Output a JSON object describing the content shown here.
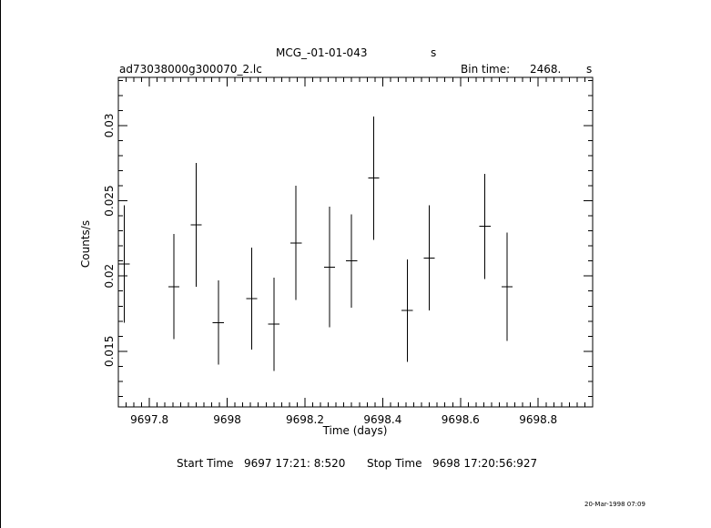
{
  "header": {
    "object_name": "MCG_-01-01-043",
    "object_unit": "s",
    "file_name": "ad73038000g300070_2.lc",
    "bin_label": "Bin time:",
    "bin_value": "2468.",
    "bin_unit": "s"
  },
  "footer": {
    "start_label": "Start Time",
    "start_value": "9697 17:21: 8:520",
    "stop_label": "Stop Time",
    "stop_value": "9698 17:20:56:927",
    "datestamp": "20-Mar-1998 07:09"
  },
  "chart_data": {
    "type": "scatter",
    "xlabel": "Time (days)",
    "ylabel": "Counts/s",
    "xlim": [
      9697.72,
      9698.94
    ],
    "ylim": [
      0.0113,
      0.0332
    ],
    "xticks": [
      {
        "value": 9697.8,
        "label": "9697.8"
      },
      {
        "value": 9698.0,
        "label": "9698"
      },
      {
        "value": 9698.2,
        "label": "9698.2"
      },
      {
        "value": 9698.4,
        "label": "9698.4"
      },
      {
        "value": 9698.6,
        "label": "9698.6"
      },
      {
        "value": 9698.8,
        "label": "9698.8"
      }
    ],
    "yticks": [
      {
        "value": 0.015,
        "label": "0.015"
      },
      {
        "value": 0.02,
        "label": "0.02"
      },
      {
        "value": 0.025,
        "label": "0.025"
      },
      {
        "value": 0.03,
        "label": "0.03"
      }
    ],
    "points": [
      {
        "x": 9697.735,
        "xerr": 0.0143,
        "y": 0.0208,
        "yerr": 0.0039
      },
      {
        "x": 9697.863,
        "xerr": 0.0143,
        "y": 0.0193,
        "yerr": 0.0035
      },
      {
        "x": 9697.92,
        "xerr": 0.0143,
        "y": 0.0234,
        "yerr": 0.0041
      },
      {
        "x": 9697.977,
        "xerr": 0.0143,
        "y": 0.0169,
        "yerr": 0.0028
      },
      {
        "x": 9698.063,
        "xerr": 0.0143,
        "y": 0.0185,
        "yerr": 0.0034
      },
      {
        "x": 9698.12,
        "xerr": 0.0143,
        "y": 0.0168,
        "yerr": 0.0031
      },
      {
        "x": 9698.177,
        "xerr": 0.0143,
        "y": 0.0222,
        "yerr": 0.0038
      },
      {
        "x": 9698.263,
        "xerr": 0.0143,
        "y": 0.0206,
        "yerr": 0.004
      },
      {
        "x": 9698.32,
        "xerr": 0.0143,
        "y": 0.021,
        "yerr": 0.0031
      },
      {
        "x": 9698.377,
        "xerr": 0.0143,
        "y": 0.0265,
        "yerr": 0.0041
      },
      {
        "x": 9698.463,
        "xerr": 0.0143,
        "y": 0.0177,
        "yerr": 0.0034
      },
      {
        "x": 9698.52,
        "xerr": 0.0143,
        "y": 0.0212,
        "yerr": 0.0035
      },
      {
        "x": 9698.663,
        "xerr": 0.0143,
        "y": 0.0233,
        "yerr": 0.0035
      },
      {
        "x": 9698.72,
        "xerr": 0.0143,
        "y": 0.0193,
        "yerr": 0.0036
      }
    ]
  }
}
